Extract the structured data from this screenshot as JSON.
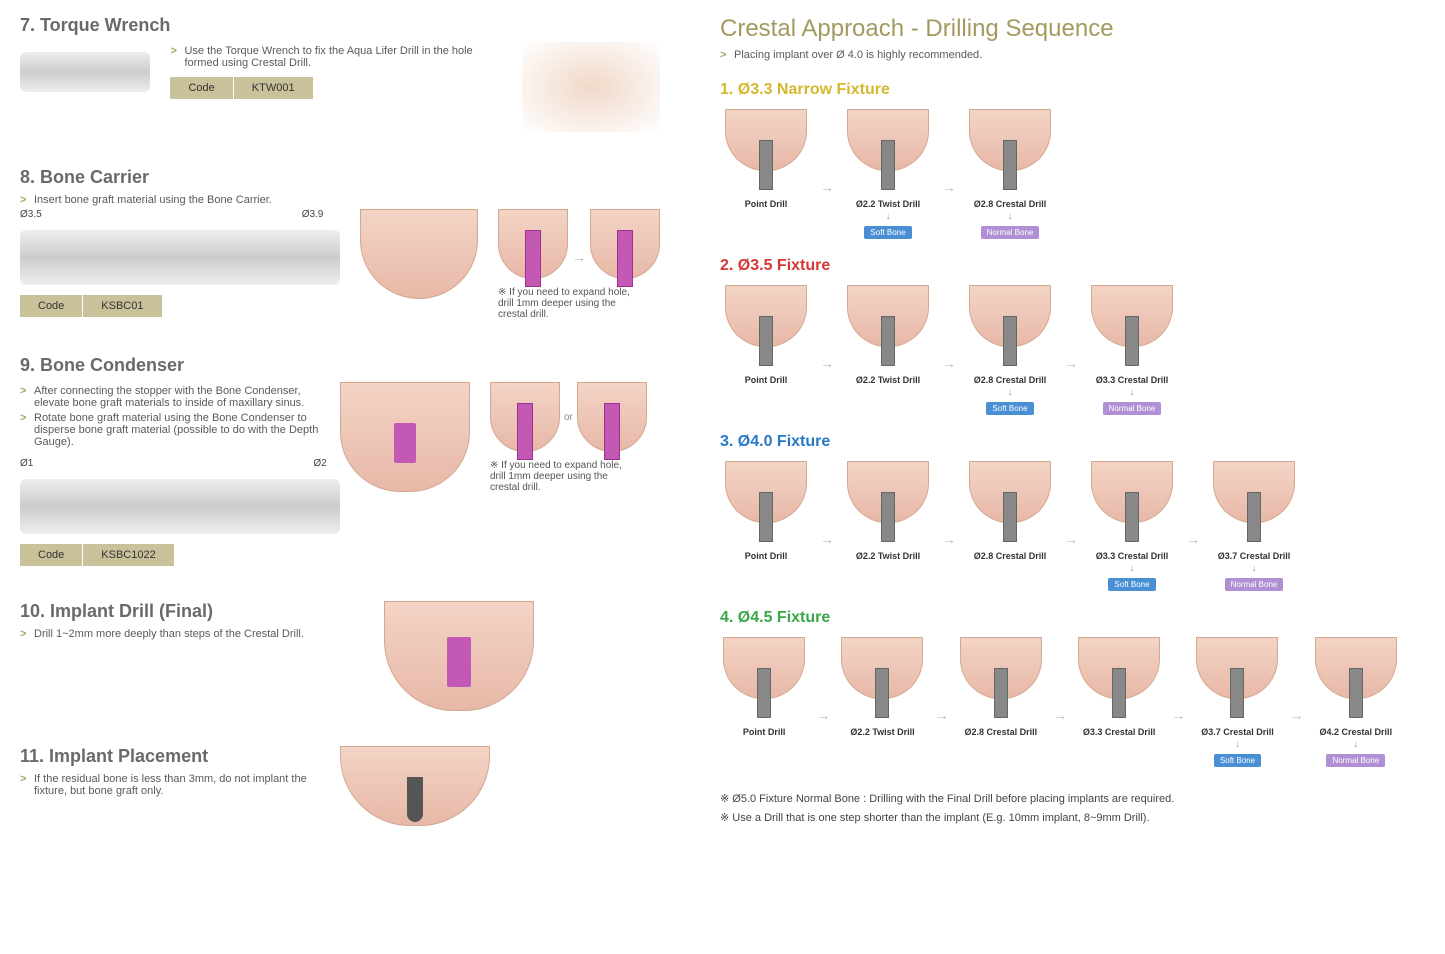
{
  "left": {
    "s7": {
      "title": "7. Torque Wrench",
      "desc": "Use the Torque Wrench to fix the Aqua Lifer Drill in the hole formed using Crestal Drill.",
      "code_label": "Code",
      "code_val": "KTW001"
    },
    "s8": {
      "title": "8. Bone Carrier",
      "desc": "Insert bone graft material using the Bone Carrier.",
      "dim1": "Ø3.5",
      "dim2": "Ø3.9",
      "code_label": "Code",
      "code_val": "KSBC01",
      "tip": "If you need to expand hole, drill 1mm deeper using the crestal drill."
    },
    "s9": {
      "title": "9. Bone Condenser",
      "desc1": "After connecting the stopper with the Bone Condenser, elevate bone graft materials to inside of maxillary sinus.",
      "desc2": "Rotate bone graft material using the Bone Condenser to disperse bone graft material (possible to do with the Depth Gauge).",
      "dim1": "Ø1",
      "dim2": "Ø2",
      "code_label": "Code",
      "code_val": "KSBC1022",
      "or": "or",
      "tip": "If you need to expand hole, drill 1mm deeper using the crestal drill."
    },
    "s10": {
      "title": "10. Implant Drill (Final)",
      "desc": "Drill 1~2mm more deeply than steps of the Crestal Drill."
    },
    "s11": {
      "title": "11. Implant Placement",
      "desc": "If the residual bone is less than 3mm, do not implant the fixture, but bone graft only."
    }
  },
  "right": {
    "title": "Crestal Approach - Drilling Sequence",
    "sub": "Placing implant over Ø 4.0 is highly recommended.",
    "tags": {
      "soft": "Soft Bone",
      "normal": "Normal Bone"
    },
    "colors": {
      "f1": "#d4b830",
      "f2": "#d43838",
      "f3": "#2878c8",
      "f4": "#3aa848"
    },
    "f1": {
      "title": "1. Ø3.3 Narrow Fixture",
      "steps": [
        "Point Drill",
        "Ø2.2 Twist Drill",
        "Ø2.8 Crestal Drill"
      ],
      "tags": [
        null,
        "soft",
        "normal"
      ]
    },
    "f2": {
      "title": "2. Ø3.5 Fixture",
      "steps": [
        "Point Drill",
        "Ø2.2 Twist Drill",
        "Ø2.8 Crestal Drill",
        "Ø3.3 Crestal Drill"
      ],
      "tags": [
        null,
        null,
        "soft",
        "normal"
      ]
    },
    "f3": {
      "title": "3. Ø4.0 Fixture",
      "steps": [
        "Point Drill",
        "Ø2.2 Twist Drill",
        "Ø2.8 Crestal Drill",
        "Ø3.3 Crestal Drill",
        "Ø3.7 Crestal Drill"
      ],
      "tags": [
        null,
        null,
        null,
        "soft",
        "normal"
      ]
    },
    "f4": {
      "title": "4. Ø4.5 Fixture",
      "steps": [
        "Point Drill",
        "Ø2.2 Twist Drill",
        "Ø2.8 Crestal Drill",
        "Ø3.3 Crestal Drill",
        "Ø3.7 Crestal Drill",
        "Ø4.2 Crestal Drill"
      ],
      "tags": [
        null,
        null,
        null,
        null,
        "soft",
        "normal"
      ]
    },
    "note1": "Ø5.0 Fixture Normal Bone : Drilling with the Final Drill before placing implants are required.",
    "note2": "Use a Drill that is one step shorter than the implant (E.g. 10mm implant, 8~9mm Drill)."
  }
}
